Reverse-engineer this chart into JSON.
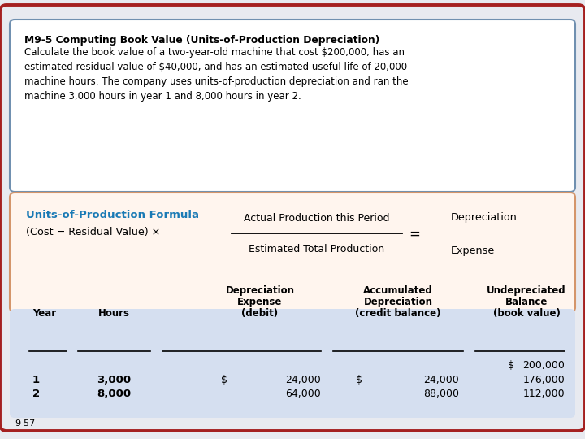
{
  "title_bold": "M9-5 Computing Book Value (Units-of-Production Depreciation)",
  "title_text": "Calculate the book value of a two-year-old machine that cost $200,000, has an\nestimated residual value of $40,000, and has an estimated useful life of 20,000\nmachine hours. The company uses units-of-production depreciation and ran the\nmachine 3,000 hours in year 1 and 8,000 hours in year 2.",
  "formula_title": "Units-of-Production Formula",
  "formula_left": "(Cost − Residual Value) ×",
  "formula_num": "Actual Production this Period",
  "formula_den": "Estimated Total Production",
  "bg_color": "#e8eaf0",
  "outer_border_color": "#a52020",
  "top_box_bg": "#ffffff",
  "top_box_border": "#7090b0",
  "formula_box_bg": "#fff5ee",
  "formula_box_border": "#d4956a",
  "formula_title_color": "#1a7ab5",
  "table_bg": "#d5dff0",
  "footer_text": "9-57",
  "table_col_headers": [
    [
      "Year",
      "",
      ""
    ],
    [
      "Hours",
      "",
      ""
    ],
    [
      "Depreciation",
      "Expense",
      "(debit)"
    ],
    [
      "Accumulated",
      "Depreciation",
      "(credit balance)"
    ],
    [
      "Undepreciated",
      "Balance",
      "(book value)"
    ]
  ],
  "table_rows": [
    [
      "",
      "",
      "",
      "",
      "$",
      "200,000"
    ],
    [
      "1",
      "3,000",
      "$",
      "24,000",
      "$",
      "24,000",
      "176,000"
    ],
    [
      "2",
      "8,000",
      "",
      "64,000",
      "",
      "88,000",
      "112,000"
    ]
  ]
}
